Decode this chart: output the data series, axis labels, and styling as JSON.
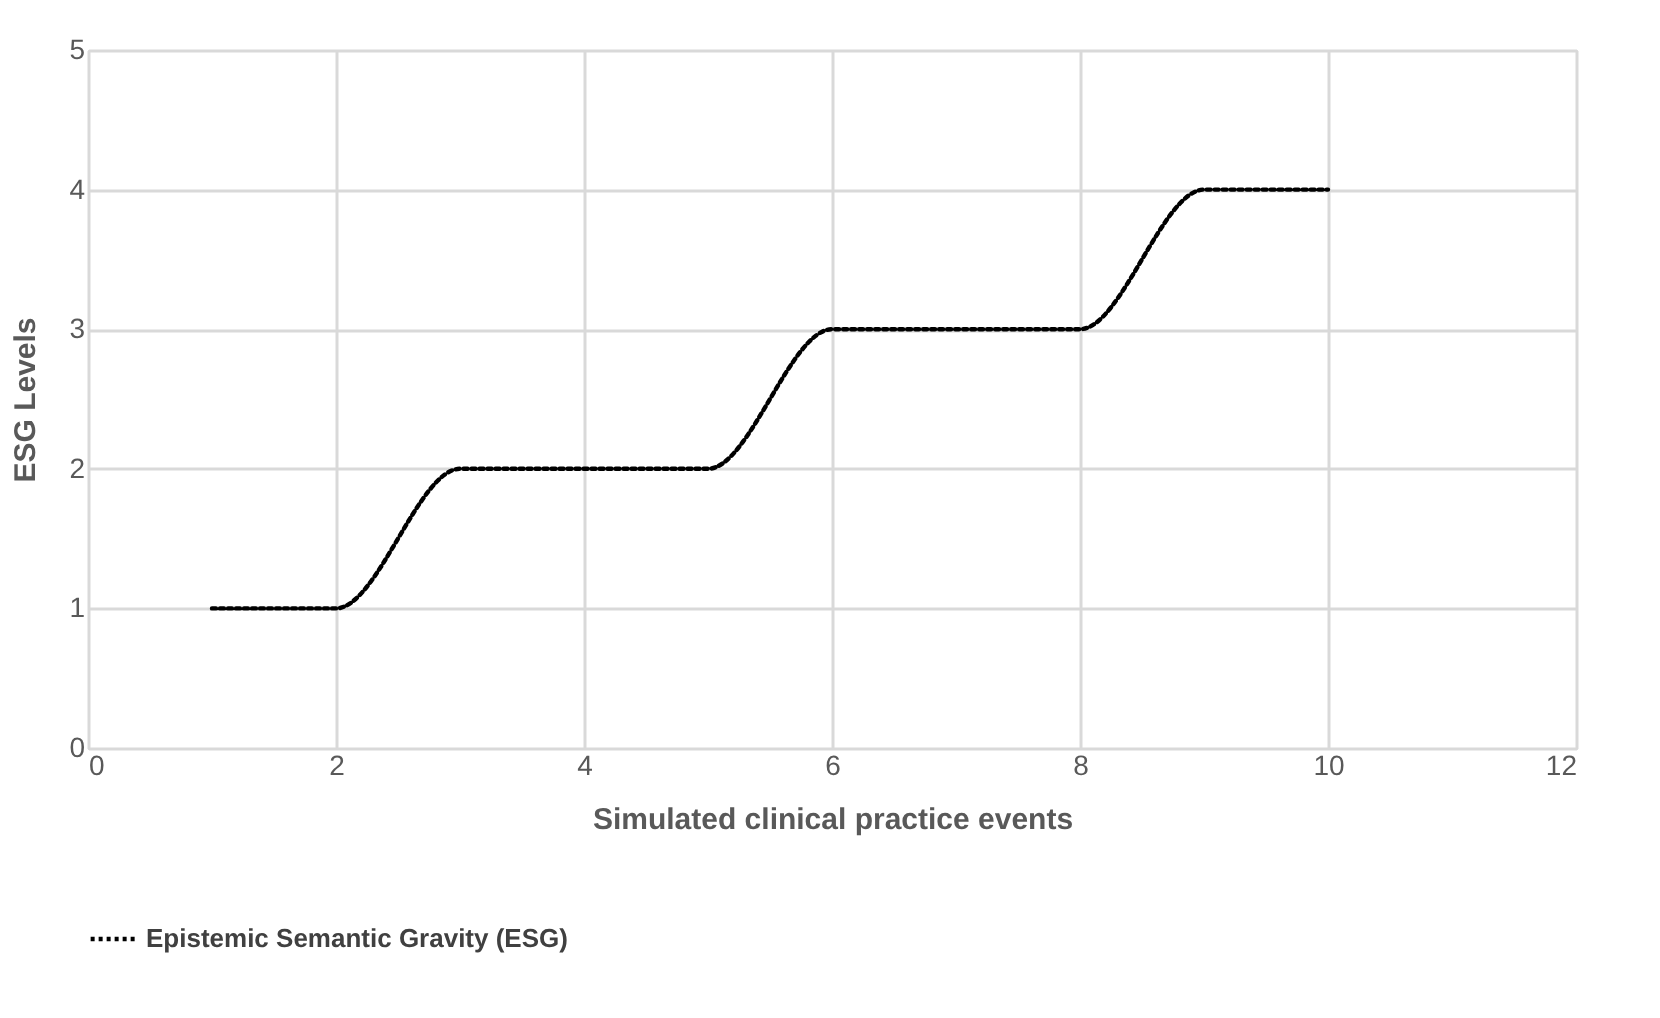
{
  "chart_data": {
    "type": "line",
    "xlabel": "Simulated clinical practice events",
    "ylabel": "ESG  Levels",
    "x": [
      1,
      2,
      3,
      4,
      5,
      6,
      7,
      8,
      9,
      10
    ],
    "series": [
      {
        "name": "Epistemic Semantic Gravity (ESG)",
        "color": "#000000",
        "values": [
          1,
          1,
          2,
          2,
          2,
          3,
          3,
          3,
          4,
          4
        ]
      }
    ],
    "xlim": [
      0,
      12
    ],
    "xticks": [
      0,
      2,
      4,
      6,
      8,
      10,
      12
    ],
    "ylim": [
      0,
      5
    ],
    "yticks": [
      0,
      1,
      2,
      3,
      4,
      5
    ],
    "grid": true,
    "legend": "bottom",
    "marker": "none",
    "line_style": "dotted"
  }
}
